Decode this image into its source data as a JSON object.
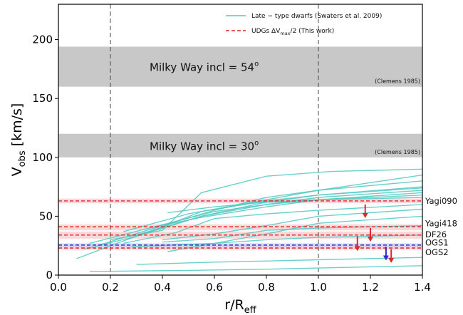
{
  "chart_data": {
    "type": "line",
    "xlabel_main": "r/R",
    "xlabel_sub": "eff",
    "ylabel_main": "V",
    "ylabel_sub": "obs",
    "ylabel_unit": " [km/s]",
    "xlim": [
      0.0,
      1.4
    ],
    "ylim": [
      0,
      230
    ],
    "xticks": [
      0.0,
      0.2,
      0.4,
      0.6,
      0.8,
      1.0,
      1.2,
      1.4
    ],
    "xtick_labels": [
      "0.0",
      "0.2",
      "0.4",
      "0.6",
      "0.8",
      "1.0",
      "1.2",
      "1.4"
    ],
    "yticks": [
      0,
      50,
      100,
      150,
      200
    ],
    "ytick_labels": [
      "0",
      "50",
      "100",
      "150",
      "200"
    ],
    "vlines": [
      0.2,
      1.0
    ],
    "legend": {
      "position": "top-right",
      "entries": [
        {
          "prefix": "Late − type dwarfs (Swaters et al. 2009)",
          "sub": "",
          "suffix": "",
          "color": "#4fc9c3",
          "style": "solid"
        },
        {
          "prefix": "UDGs ΔV",
          "sub": "max",
          "suffix": "/2 (This work)",
          "color": "#e0262a",
          "style": "dashed"
        }
      ]
    },
    "bands": [
      {
        "label_prefix": "Milky Way incl = 54",
        "label_sup": "o",
        "ref": "(Clemens 1985)",
        "ymin": 160,
        "ymax": 194,
        "color": "#c8c8c8"
      },
      {
        "label_prefix": "Milky Way incl = 30",
        "label_sup": "o",
        "ref": "(Clemens 1985)",
        "ymin": 100,
        "ymax": 120,
        "color": "#c8c8c8"
      }
    ],
    "udg_lines": [
      {
        "name": "Yagi090",
        "value": 63,
        "lo": 61,
        "hi": 65,
        "color": "#e0262a"
      },
      {
        "name": "Yagi418",
        "value": 41,
        "lo": 38,
        "hi": 43,
        "color": "#e0262a"
      },
      {
        "name": "DF26",
        "value": 34,
        "lo": 31,
        "hi": 37,
        "color": "#e0262a"
      },
      {
        "name": "OGS1",
        "value": 25.5,
        "lo": 24,
        "hi": 27,
        "color": "#2a2ad6"
      },
      {
        "name": "OGS2",
        "value": 23,
        "lo": 21.5,
        "hi": 24.5,
        "color": "#e0262a"
      }
    ],
    "arrows": [
      {
        "x": 1.18,
        "y_from": 60,
        "y_to": 49,
        "color": "#e0262a"
      },
      {
        "x": 1.2,
        "y_from": 40,
        "y_to": 29,
        "color": "#e0262a"
      },
      {
        "x": 1.15,
        "y_from": 33,
        "y_to": 21,
        "color": "#e0262a"
      },
      {
        "x": 1.26,
        "y_from": 24,
        "y_to": 13,
        "color": "#2a2ad6"
      },
      {
        "x": 1.28,
        "y_from": 22,
        "y_to": 11,
        "color": "#e0262a"
      }
    ],
    "dwarf_color": "#4fc9c3",
    "series": [
      {
        "x": [
          0.07,
          0.2,
          0.4,
          0.55,
          0.8,
          1.0,
          1.4
        ],
        "y": [
          14,
          25,
          41,
          54,
          63,
          68,
          74
        ]
      },
      {
        "x": [
          0.1,
          0.3,
          0.55,
          0.8,
          1.0,
          1.4
        ],
        "y": [
          22,
          33,
          50,
          60,
          66,
          72
        ]
      },
      {
        "x": [
          0.15,
          0.4,
          0.6,
          0.8,
          1.0,
          1.4
        ],
        "y": [
          25,
          42,
          55,
          66,
          72,
          80
        ]
      },
      {
        "x": [
          0.12,
          0.35,
          0.55,
          0.8,
          1.0,
          1.4
        ],
        "y": [
          27,
          40,
          49,
          58,
          64,
          70
        ]
      },
      {
        "x": [
          0.2,
          0.4,
          0.55,
          0.8,
          1.05,
          1.4
        ],
        "y": [
          30,
          38,
          70,
          84,
          88,
          90
        ]
      },
      {
        "x": [
          0.3,
          0.55,
          0.8,
          1.0,
          1.4
        ],
        "y": [
          34,
          50,
          62,
          68,
          75
        ]
      },
      {
        "x": [
          0.25,
          0.5,
          0.8,
          1.0,
          1.4
        ],
        "y": [
          37,
          52,
          64,
          72,
          85
        ]
      },
      {
        "x": [
          0.35,
          0.6,
          0.8,
          1.0,
          1.4
        ],
        "y": [
          40,
          54,
          60,
          64,
          68
        ]
      },
      {
        "x": [
          0.42,
          0.6,
          0.8,
          1.0,
          1.4
        ],
        "y": [
          53,
          58,
          62,
          64,
          66
        ]
      },
      {
        "x": [
          0.25,
          0.45,
          0.6,
          0.8,
          1.0,
          1.4
        ],
        "y": [
          27,
          36,
          48,
          52,
          55,
          60
        ]
      },
      {
        "x": [
          0.4,
          0.6,
          0.8,
          1.0,
          1.4
        ],
        "y": [
          30,
          35,
          42,
          50,
          56
        ]
      },
      {
        "x": [
          0.42,
          0.6,
          0.8,
          1.0,
          1.4
        ],
        "y": [
          20,
          27,
          35,
          44,
          50
        ]
      },
      {
        "x": [
          0.4,
          0.6,
          0.8,
          1.0,
          1.4
        ],
        "y": [
          28,
          31,
          38,
          40,
          42
        ]
      },
      {
        "x": [
          0.28,
          0.6,
          0.8,
          1.0,
          1.4
        ],
        "y": [
          24,
          27,
          30,
          32,
          34
        ]
      },
      {
        "x": [
          0.3,
          0.6,
          0.8,
          1.0,
          1.4
        ],
        "y": [
          9,
          11,
          12,
          13,
          15
        ]
      },
      {
        "x": [
          0.12,
          0.5,
          0.8,
          1.0,
          1.4
        ],
        "y": [
          3,
          4,
          5,
          6,
          8
        ]
      }
    ]
  }
}
